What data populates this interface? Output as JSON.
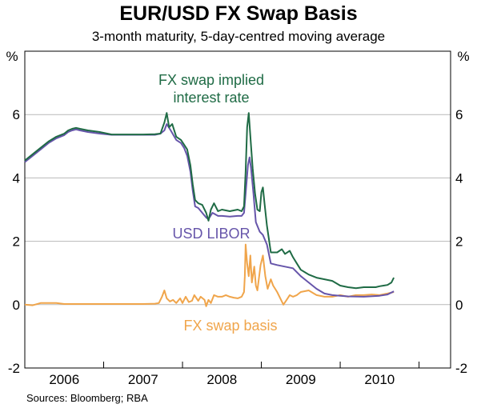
{
  "title": "EUR/USD FX Swap Basis",
  "subtitle": "3-month maturity, 5-day-centred moving average",
  "source": "Sources: Bloomberg; RBA",
  "chart_data": {
    "type": "line",
    "ylabel_left": "%",
    "ylabel_right": "%",
    "ylim": [
      -2,
      8
    ],
    "yticks": [
      -2,
      0,
      2,
      4,
      6
    ],
    "xlim": [
      2005.5,
      2010.9
    ],
    "xtick_labels": [
      {
        "label": "2006",
        "x": 2006.0
      },
      {
        "label": "2007",
        "x": 2007.0
      },
      {
        "label": "2008",
        "x": 2008.0
      },
      {
        "label": "2009",
        "x": 2009.0
      },
      {
        "label": "2010",
        "x": 2010.0
      }
    ],
    "grid": true,
    "series": [
      {
        "name": "FX swap implied interest rate",
        "label_lines": [
          "FX swap implied",
          "interest rate"
        ],
        "color": "#1f6b45",
        "points": [
          [
            2005.5,
            4.55
          ],
          [
            2005.6,
            4.75
          ],
          [
            2005.7,
            4.95
          ],
          [
            2005.8,
            5.15
          ],
          [
            2005.9,
            5.3
          ],
          [
            2006.0,
            5.4
          ],
          [
            2006.05,
            5.5
          ],
          [
            2006.1,
            5.55
          ],
          [
            2006.15,
            5.58
          ],
          [
            2006.2,
            5.55
          ],
          [
            2006.3,
            5.5
          ],
          [
            2006.45,
            5.45
          ],
          [
            2006.6,
            5.37
          ],
          [
            2006.8,
            5.37
          ],
          [
            2007.0,
            5.37
          ],
          [
            2007.15,
            5.38
          ],
          [
            2007.22,
            5.4
          ],
          [
            2007.27,
            5.75
          ],
          [
            2007.3,
            6.05
          ],
          [
            2007.33,
            5.6
          ],
          [
            2007.37,
            5.7
          ],
          [
            2007.42,
            5.3
          ],
          [
            2007.48,
            5.2
          ],
          [
            2007.52,
            5.05
          ],
          [
            2007.56,
            4.9
          ],
          [
            2007.6,
            4.4
          ],
          [
            2007.63,
            3.8
          ],
          [
            2007.66,
            3.3
          ],
          [
            2007.7,
            3.2
          ],
          [
            2007.75,
            3.15
          ],
          [
            2007.8,
            2.9
          ],
          [
            2007.83,
            2.65
          ],
          [
            2007.86,
            3.0
          ],
          [
            2007.9,
            3.2
          ],
          [
            2007.95,
            2.95
          ],
          [
            2008.0,
            3.0
          ],
          [
            2008.1,
            2.95
          ],
          [
            2008.2,
            3.0
          ],
          [
            2008.25,
            2.95
          ],
          [
            2008.28,
            3.1
          ],
          [
            2008.3,
            4.2
          ],
          [
            2008.32,
            5.6
          ],
          [
            2008.34,
            6.05
          ],
          [
            2008.37,
            5.0
          ],
          [
            2008.39,
            4.3
          ],
          [
            2008.42,
            3.5
          ],
          [
            2008.45,
            3.0
          ],
          [
            2008.48,
            2.95
          ],
          [
            2008.5,
            3.55
          ],
          [
            2008.52,
            3.7
          ],
          [
            2008.54,
            3.2
          ],
          [
            2008.57,
            2.5
          ],
          [
            2008.62,
            1.65
          ],
          [
            2008.7,
            1.65
          ],
          [
            2008.76,
            1.75
          ],
          [
            2008.8,
            1.6
          ],
          [
            2008.86,
            1.7
          ],
          [
            2008.9,
            1.5
          ],
          [
            2008.95,
            1.3
          ],
          [
            2009.0,
            1.1
          ],
          [
            2009.1,
            0.95
          ],
          [
            2009.2,
            0.85
          ],
          [
            2009.3,
            0.8
          ],
          [
            2009.4,
            0.75
          ],
          [
            2009.5,
            0.6
          ],
          [
            2009.6,
            0.55
          ],
          [
            2009.7,
            0.52
          ],
          [
            2009.8,
            0.55
          ],
          [
            2009.9,
            0.55
          ],
          [
            2009.95,
            0.55
          ],
          [
            2010.0,
            0.58
          ],
          [
            2010.05,
            0.6
          ],
          [
            2010.1,
            0.62
          ],
          [
            2010.15,
            0.7
          ],
          [
            2010.18,
            0.85
          ]
        ]
      },
      {
        "name": "USD LIBOR",
        "label_lines": [
          "USD LIBOR"
        ],
        "color": "#6655aa",
        "points": [
          [
            2005.5,
            4.5
          ],
          [
            2005.6,
            4.7
          ],
          [
            2005.7,
            4.9
          ],
          [
            2005.8,
            5.1
          ],
          [
            2005.9,
            5.25
          ],
          [
            2006.0,
            5.35
          ],
          [
            2006.05,
            5.45
          ],
          [
            2006.1,
            5.5
          ],
          [
            2006.15,
            5.53
          ],
          [
            2006.2,
            5.5
          ],
          [
            2006.3,
            5.45
          ],
          [
            2006.45,
            5.4
          ],
          [
            2006.6,
            5.36
          ],
          [
            2006.8,
            5.36
          ],
          [
            2007.0,
            5.36
          ],
          [
            2007.15,
            5.36
          ],
          [
            2007.22,
            5.4
          ],
          [
            2007.27,
            5.5
          ],
          [
            2007.3,
            5.7
          ],
          [
            2007.35,
            5.5
          ],
          [
            2007.42,
            5.2
          ],
          [
            2007.48,
            5.1
          ],
          [
            2007.52,
            4.95
          ],
          [
            2007.56,
            4.7
          ],
          [
            2007.6,
            4.2
          ],
          [
            2007.63,
            3.6
          ],
          [
            2007.66,
            3.1
          ],
          [
            2007.7,
            3.05
          ],
          [
            2007.75,
            2.9
          ],
          [
            2007.8,
            2.75
          ],
          [
            2007.83,
            2.7
          ],
          [
            2007.88,
            2.9
          ],
          [
            2007.95,
            2.8
          ],
          [
            2008.0,
            2.8
          ],
          [
            2008.1,
            2.78
          ],
          [
            2008.2,
            2.8
          ],
          [
            2008.25,
            2.8
          ],
          [
            2008.28,
            2.9
          ],
          [
            2008.3,
            3.5
          ],
          [
            2008.33,
            4.4
          ],
          [
            2008.35,
            4.65
          ],
          [
            2008.37,
            4.3
          ],
          [
            2008.4,
            3.5
          ],
          [
            2008.43,
            2.6
          ],
          [
            2008.48,
            2.3
          ],
          [
            2008.52,
            2.2
          ],
          [
            2008.57,
            1.9
          ],
          [
            2008.62,
            1.3
          ],
          [
            2008.7,
            1.25
          ],
          [
            2008.8,
            1.2
          ],
          [
            2008.9,
            1.15
          ],
          [
            2009.0,
            0.9
          ],
          [
            2009.1,
            0.7
          ],
          [
            2009.2,
            0.5
          ],
          [
            2009.3,
            0.35
          ],
          [
            2009.4,
            0.3
          ],
          [
            2009.5,
            0.28
          ],
          [
            2009.6,
            0.26
          ],
          [
            2009.8,
            0.25
          ],
          [
            2010.0,
            0.28
          ],
          [
            2010.1,
            0.32
          ],
          [
            2010.18,
            0.42
          ]
        ]
      },
      {
        "name": "FX swap basis",
        "label_lines": [
          "FX swap basis"
        ],
        "color": "#f0a54b",
        "points": [
          [
            2005.5,
            0.0
          ],
          [
            2005.6,
            -0.02
          ],
          [
            2005.7,
            0.05
          ],
          [
            2005.8,
            0.05
          ],
          [
            2005.9,
            0.05
          ],
          [
            2006.0,
            0.02
          ],
          [
            2006.2,
            0.02
          ],
          [
            2006.4,
            0.02
          ],
          [
            2006.6,
            0.02
          ],
          [
            2006.8,
            0.02
          ],
          [
            2007.0,
            0.02
          ],
          [
            2007.15,
            0.03
          ],
          [
            2007.2,
            0.05
          ],
          [
            2007.24,
            0.25
          ],
          [
            2007.27,
            0.45
          ],
          [
            2007.3,
            0.2
          ],
          [
            2007.34,
            0.1
          ],
          [
            2007.38,
            0.15
          ],
          [
            2007.42,
            0.05
          ],
          [
            2007.47,
            0.2
          ],
          [
            2007.5,
            0.05
          ],
          [
            2007.54,
            0.25
          ],
          [
            2007.58,
            0.08
          ],
          [
            2007.62,
            0.12
          ],
          [
            2007.65,
            0.3
          ],
          [
            2007.7,
            0.12
          ],
          [
            2007.73,
            0.25
          ],
          [
            2007.78,
            0.15
          ],
          [
            2007.8,
            -0.05
          ],
          [
            2007.83,
            0.15
          ],
          [
            2007.86,
            0.05
          ],
          [
            2007.9,
            0.3
          ],
          [
            2007.95,
            0.25
          ],
          [
            2008.0,
            0.25
          ],
          [
            2008.05,
            0.3
          ],
          [
            2008.1,
            0.25
          ],
          [
            2008.15,
            0.22
          ],
          [
            2008.2,
            0.2
          ],
          [
            2008.25,
            0.25
          ],
          [
            2008.28,
            0.4
          ],
          [
            2008.29,
            0.9
          ],
          [
            2008.3,
            1.9
          ],
          [
            2008.32,
            1.3
          ],
          [
            2008.34,
            0.9
          ],
          [
            2008.36,
            1.55
          ],
          [
            2008.38,
            0.7
          ],
          [
            2008.41,
            1.2
          ],
          [
            2008.43,
            0.6
          ],
          [
            2008.45,
            0.45
          ],
          [
            2008.49,
            1.25
          ],
          [
            2008.52,
            1.55
          ],
          [
            2008.55,
            0.9
          ],
          [
            2008.58,
            0.5
          ],
          [
            2008.62,
            0.8
          ],
          [
            2008.65,
            0.6
          ],
          [
            2008.7,
            0.4
          ],
          [
            2008.74,
            0.2
          ],
          [
            2008.78,
            0.0
          ],
          [
            2008.82,
            0.15
          ],
          [
            2008.86,
            0.3
          ],
          [
            2008.9,
            0.25
          ],
          [
            2008.95,
            0.3
          ],
          [
            2009.0,
            0.4
          ],
          [
            2009.1,
            0.45
          ],
          [
            2009.2,
            0.3
          ],
          [
            2009.3,
            0.25
          ],
          [
            2009.4,
            0.25
          ],
          [
            2009.5,
            0.3
          ],
          [
            2009.6,
            0.25
          ],
          [
            2009.7,
            0.3
          ],
          [
            2009.8,
            0.3
          ],
          [
            2009.9,
            0.32
          ],
          [
            2010.0,
            0.3
          ],
          [
            2010.1,
            0.35
          ],
          [
            2010.18,
            0.4
          ]
        ]
      }
    ]
  }
}
